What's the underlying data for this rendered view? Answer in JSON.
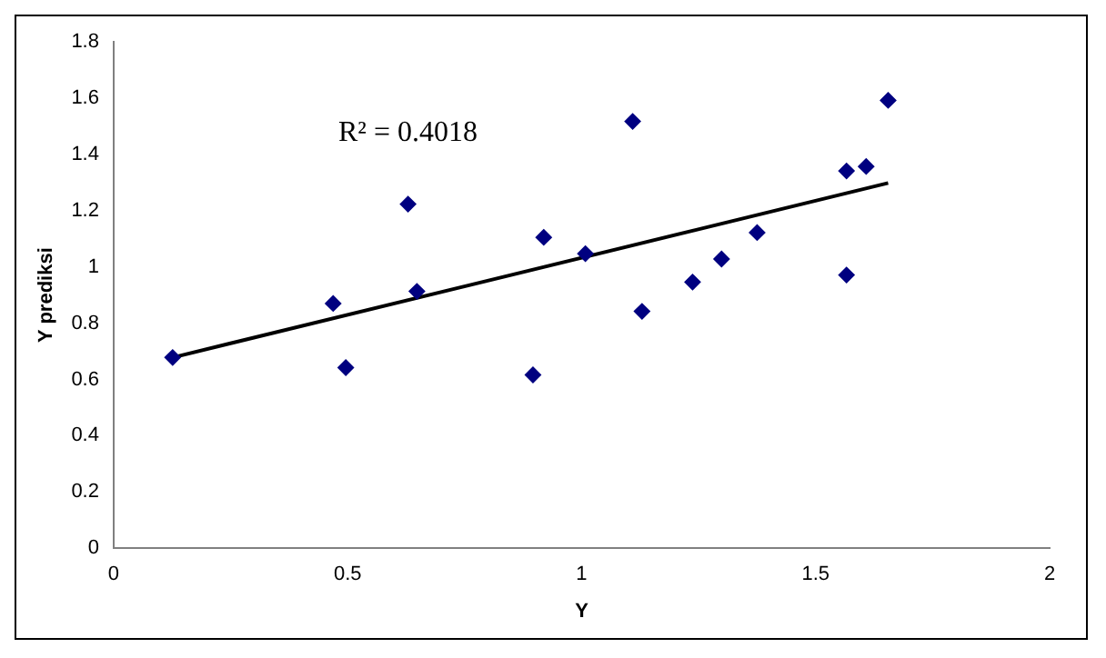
{
  "chart_data": {
    "type": "scatter",
    "xlabel": "Y",
    "ylabel": "Y prediksi",
    "annotations": [
      "R² = 0.4018"
    ],
    "xlim": [
      0,
      2
    ],
    "xticks": [
      0,
      0.5,
      1,
      1.5,
      2
    ],
    "ylim": [
      0,
      1.8
    ],
    "yticks": [
      0,
      0.2,
      0.4,
      0.6,
      0.8,
      1,
      1.2,
      1.4,
      1.6,
      1.8
    ],
    "grid": false,
    "legend": false,
    "marker": "diamond",
    "series": [
      {
        "type": "scatter",
        "color": "#000080",
        "x": [
          0.126,
          0.469,
          0.496,
          0.629,
          0.648,
          0.896,
          0.919,
          1.008,
          1.109,
          1.129,
          1.237,
          1.299,
          1.375,
          1.566,
          1.566,
          1.608,
          1.655
        ],
        "values": [
          0.678,
          0.87,
          0.642,
          1.223,
          0.913,
          0.616,
          1.105,
          1.047,
          1.517,
          0.842,
          0.946,
          1.028,
          1.122,
          1.341,
          0.971,
          1.357,
          1.592
        ]
      },
      {
        "type": "line",
        "color": "#000000",
        "marker": "none",
        "line_style": "solid",
        "x": [
          0.126,
          1.655
        ],
        "values": [
          0.678,
          1.298
        ]
      }
    ]
  }
}
